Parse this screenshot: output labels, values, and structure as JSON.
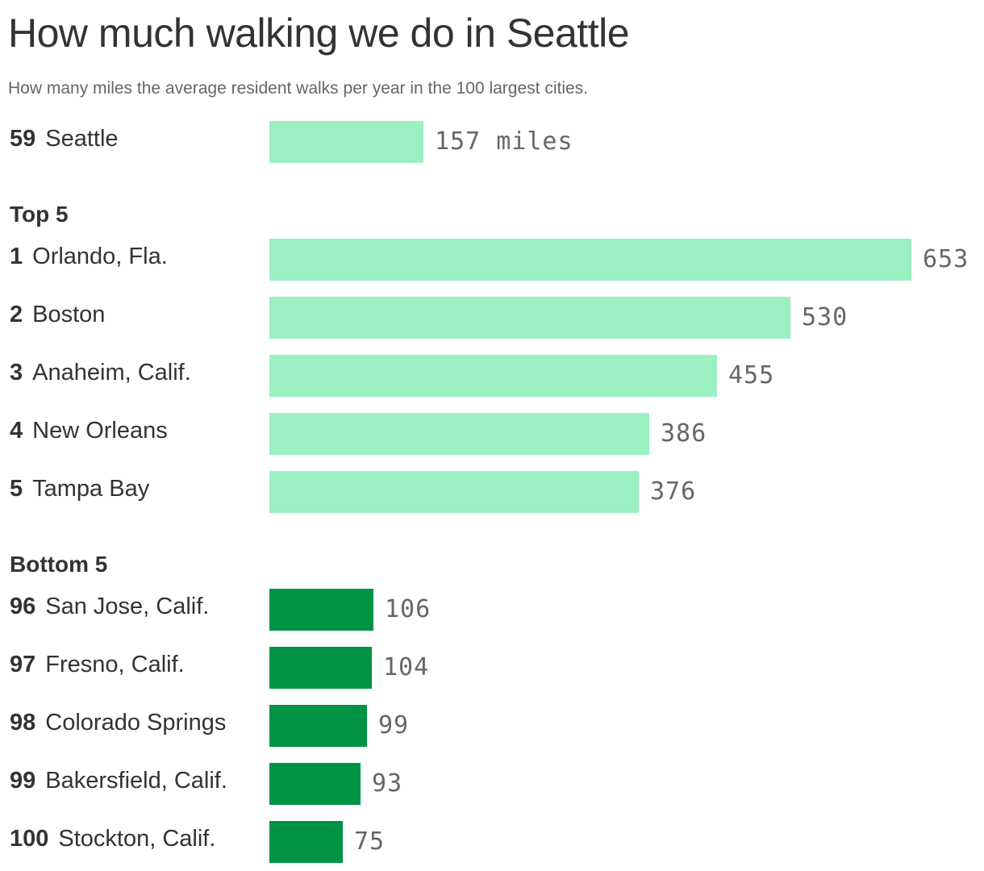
{
  "header": {
    "title": "How much walking we do in Seattle",
    "subtitle": "How many miles the average resident walks per year in the 100 largest cities."
  },
  "colors": {
    "top_bar": "#9af0c0",
    "bottom_bar": "#009245",
    "text": "#333333",
    "value_text": "#666666"
  },
  "chart_data": {
    "type": "bar",
    "orientation": "horizontal",
    "title": "How much walking we do in Seattle",
    "subtitle": "How many miles the average resident walks per year in the 100 largest cities.",
    "xlim": [
      0,
      653
    ],
    "grid": false,
    "groups": [
      {
        "label": "",
        "color": "#9af0c0",
        "rows": [
          {
            "rank": "59",
            "city": "Seattle",
            "value": 157,
            "value_label": "157 miles"
          }
        ]
      },
      {
        "label": "Top 5",
        "color": "#9af0c0",
        "rows": [
          {
            "rank": "1",
            "city": "Orlando, Fla.",
            "value": 653,
            "value_label": "653"
          },
          {
            "rank": "2",
            "city": "Boston",
            "value": 530,
            "value_label": "530"
          },
          {
            "rank": "3",
            "city": "Anaheim, Calif.",
            "value": 455,
            "value_label": "455"
          },
          {
            "rank": "4",
            "city": "New Orleans",
            "value": 386,
            "value_label": "386"
          },
          {
            "rank": "5",
            "city": "Tampa Bay",
            "value": 376,
            "value_label": "376"
          }
        ]
      },
      {
        "label": "Bottom 5",
        "color": "#009245",
        "rows": [
          {
            "rank": "96",
            "city": "San Jose, Calif.",
            "value": 106,
            "value_label": "106"
          },
          {
            "rank": "97",
            "city": "Fresno, Calif.",
            "value": 104,
            "value_label": "104"
          },
          {
            "rank": "98",
            "city": "Colorado Springs",
            "value": 99,
            "value_label": "99"
          },
          {
            "rank": "99",
            "city": "Bakersfield, Calif.",
            "value": 93,
            "value_label": "93"
          },
          {
            "rank": "100",
            "city": "Stockton, Calif.",
            "value": 75,
            "value_label": "75"
          }
        ]
      }
    ]
  }
}
